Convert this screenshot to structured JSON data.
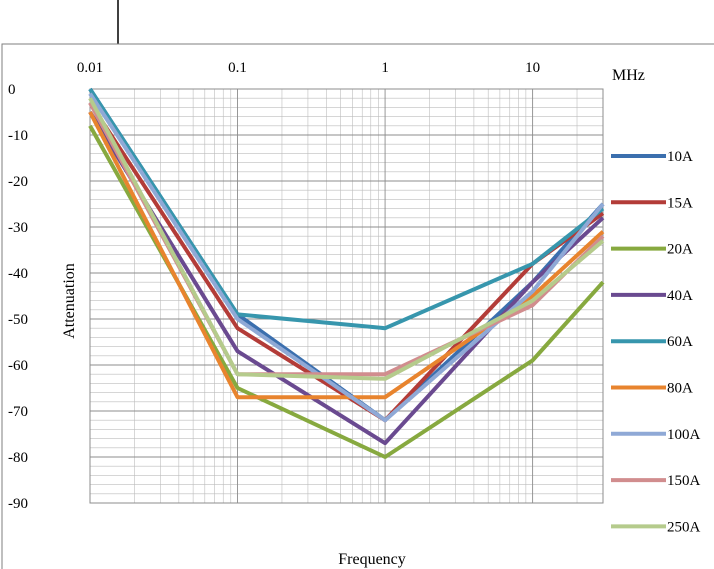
{
  "chart_data": {
    "type": "line",
    "title": "",
    "xlabel": "Frequency",
    "ylabel": "Attenuation",
    "x_unit_label": "MHz",
    "x_scale": "log",
    "xlim": [
      0.01,
      30
    ],
    "ylim": [
      -90,
      0
    ],
    "grid": true,
    "legend_position": "right",
    "x_tick_labels": [
      "0.01",
      "0.1",
      "1",
      "10"
    ],
    "x_ticks": [
      0.01,
      0.1,
      1,
      10
    ],
    "y_ticks": [
      0,
      -10,
      -20,
      -30,
      -40,
      -50,
      -60,
      -70,
      -80,
      -90
    ],
    "y_tick_labels": [
      "0",
      "-10",
      "-20",
      "-30",
      "-40",
      "-50",
      "-60",
      "-70",
      "-80",
      "-90"
    ],
    "x": [
      0.01,
      0.1,
      1,
      10,
      30
    ],
    "series": [
      {
        "name": "10A",
        "color": "#3B6FAE",
        "values": [
          0,
          -49,
          -72,
          -42,
          -25
        ]
      },
      {
        "name": "15A",
        "color": "#B33C38",
        "values": [
          -3,
          -52,
          -72,
          -38,
          -27
        ]
      },
      {
        "name": "20A",
        "color": "#87A93F",
        "values": [
          -8,
          -65,
          -80,
          -59,
          -42
        ]
      },
      {
        "name": "40A",
        "color": "#6A4A90",
        "values": [
          -5,
          -57,
          -77,
          -42,
          -28
        ]
      },
      {
        "name": "60A",
        "color": "#3796AD",
        "values": [
          0,
          -49,
          -52,
          -38,
          -26
        ]
      },
      {
        "name": "80A",
        "color": "#E8842E",
        "values": [
          -5,
          -67,
          -67,
          -45,
          -31
        ]
      },
      {
        "name": "100A",
        "color": "#8FA9D6",
        "values": [
          -1,
          -50,
          -72,
          -44,
          -25
        ]
      },
      {
        "name": "150A",
        "color": "#D18D8E",
        "values": [
          -3,
          -62,
          -62,
          -47,
          -32
        ]
      },
      {
        "name": "250A",
        "color": "#B5CB8C",
        "values": [
          -2,
          -62,
          -63,
          -46,
          -33
        ]
      }
    ]
  }
}
